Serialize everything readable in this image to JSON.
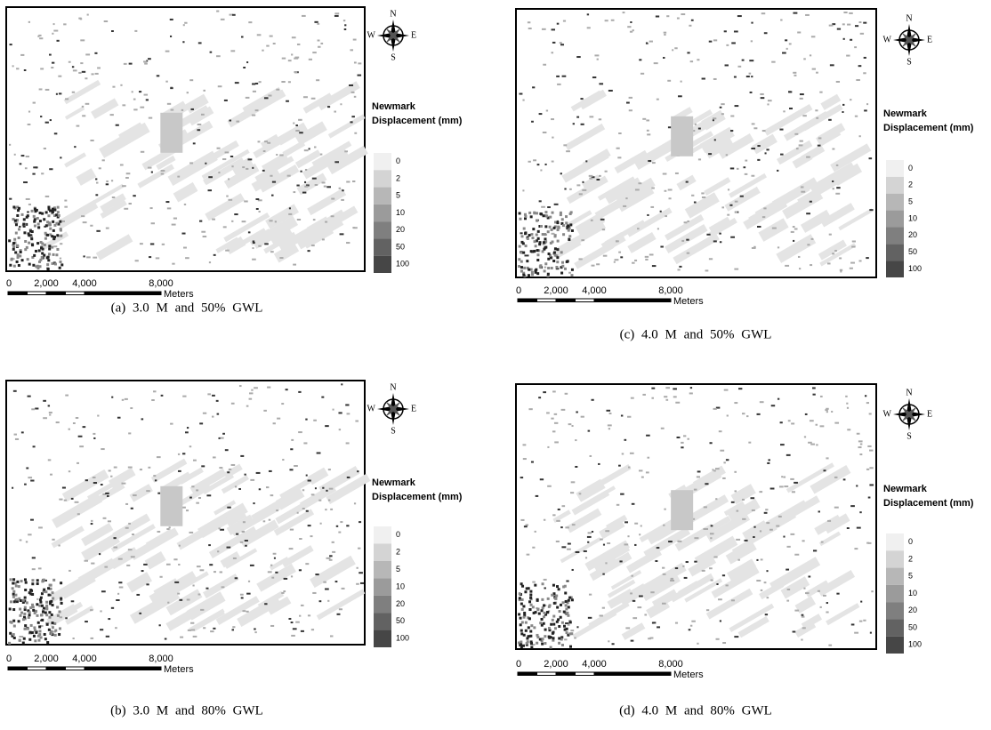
{
  "panels": [
    {
      "caption": "(a) 3.0 M and 50% GWL",
      "compass": {
        "n": "N",
        "e": "E",
        "s": "S",
        "w": "W"
      },
      "legend": {
        "title": [
          "Newmark",
          "Displacement (mm)"
        ],
        "labels": [
          "0",
          "2",
          "5",
          "10",
          "20",
          "50",
          "100"
        ]
      },
      "scale": {
        "ticks": [
          "0",
          "2,000",
          "4,000",
          "8,000"
        ],
        "unit": "Meters"
      }
    },
    {
      "caption": "(c) 4.0 M and 50% GWL",
      "compass": {
        "n": "N",
        "e": "E",
        "s": "S",
        "w": "W"
      },
      "legend": {
        "title": [
          "Newmark",
          "Displacement (mm)"
        ],
        "labels": [
          "0",
          "2",
          "5",
          "10",
          "20",
          "50",
          "100"
        ]
      },
      "scale": {
        "ticks": [
          "0",
          "2,000",
          "4,000",
          "8,000"
        ],
        "unit": "Meters"
      }
    },
    {
      "caption": "(b) 3.0 M and 80% GWL",
      "compass": {
        "n": "N",
        "e": "E",
        "s": "S",
        "w": "W"
      },
      "legend": {
        "title": [
          "Newmark",
          "Displacement (mm)"
        ],
        "labels": [
          "0",
          "2",
          "5",
          "10",
          "20",
          "50",
          "100"
        ]
      },
      "scale": {
        "ticks": [
          "0",
          "2,000",
          "4,000",
          "8,000"
        ],
        "unit": "Meters"
      }
    },
    {
      "caption": "(d) 4.0 M and 80% GWL",
      "compass": {
        "n": "N",
        "e": "E",
        "s": "S",
        "w": "W"
      },
      "legend": {
        "title": [
          "Newmark",
          "Displacement (mm)"
        ],
        "labels": [
          "0",
          "2",
          "5",
          "10",
          "20",
          "50",
          "100"
        ]
      },
      "scale": {
        "ticks": [
          "0",
          "2,000",
          "4,000",
          "8,000"
        ],
        "unit": "Meters"
      }
    }
  ]
}
